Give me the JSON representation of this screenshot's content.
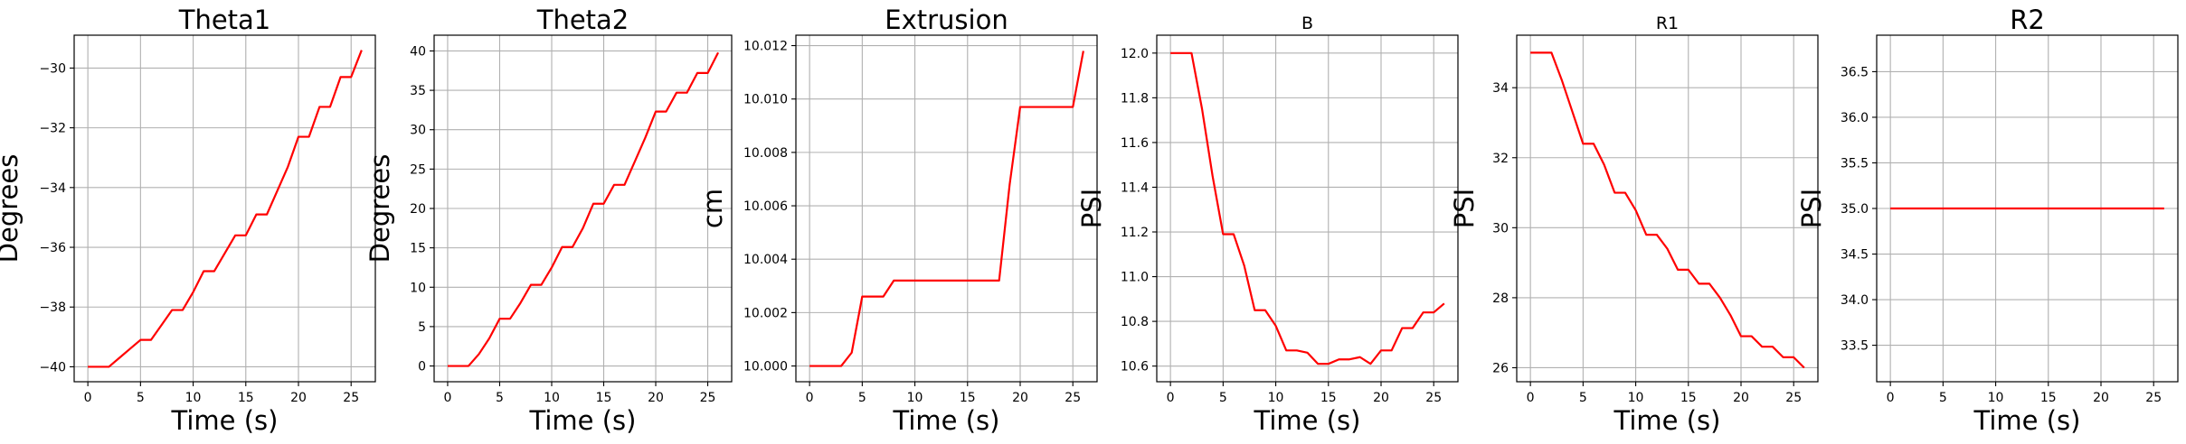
{
  "figure": {
    "background": "#ffffff",
    "line_color": "#ff0000",
    "grid_color": "#b0b0b0"
  },
  "chart_data": [
    {
      "type": "line",
      "title": "Theta1",
      "xlabel": "Time (s)",
      "ylabel": "Degrees",
      "xlim": [
        -1.3,
        27.3
      ],
      "ylim": [
        -40.5,
        -28.9
      ],
      "xticks": [
        0,
        5,
        10,
        15,
        20,
        25
      ],
      "xtick_labels": [
        "0",
        "5",
        "10",
        "15",
        "20",
        "25"
      ],
      "yticks": [
        -40,
        -38,
        -36,
        -34,
        -32,
        -30
      ],
      "ytick_labels": [
        "−40",
        "−38",
        "−36",
        "−34",
        "−32",
        "−30"
      ],
      "grid": true,
      "x": [
        0,
        1,
        2,
        3,
        4,
        5,
        6,
        7,
        8,
        9,
        10,
        11,
        12,
        13,
        14,
        15,
        16,
        17,
        18,
        19,
        20,
        21,
        22,
        23,
        24,
        25,
        26
      ],
      "y": [
        -40.0,
        -40.0,
        -40.0,
        -39.7,
        -39.4,
        -39.1,
        -39.1,
        -38.6,
        -38.1,
        -38.1,
        -37.5,
        -36.8,
        -36.8,
        -36.2,
        -35.6,
        -35.6,
        -34.9,
        -34.9,
        -34.1,
        -33.3,
        -32.3,
        -32.3,
        -31.3,
        -31.3,
        -30.3,
        -30.3,
        -29.4
      ]
    },
    {
      "type": "line",
      "title": "Theta2",
      "xlabel": "Time (s)",
      "ylabel": "Degrees",
      "xlim": [
        -1.3,
        27.3
      ],
      "ylim": [
        -2.0,
        42.0
      ],
      "xticks": [
        0,
        5,
        10,
        15,
        20,
        25
      ],
      "xtick_labels": [
        "0",
        "5",
        "10",
        "15",
        "20",
        "25"
      ],
      "yticks": [
        0,
        5,
        10,
        15,
        20,
        25,
        30,
        35,
        40
      ],
      "ytick_labels": [
        "0",
        "5",
        "10",
        "15",
        "20",
        "25",
        "30",
        "35",
        "40"
      ],
      "grid": true,
      "x": [
        0,
        1,
        2,
        3,
        4,
        5,
        6,
        7,
        8,
        9,
        10,
        11,
        12,
        13,
        14,
        15,
        16,
        17,
        18,
        19,
        20,
        21,
        22,
        23,
        24,
        25,
        26
      ],
      "y": [
        0,
        0,
        0,
        1.5,
        3.5,
        6.0,
        6.0,
        8.0,
        10.3,
        10.3,
        12.5,
        15.1,
        15.1,
        17.5,
        20.6,
        20.6,
        23.0,
        23.0,
        26.0,
        29.0,
        32.3,
        32.3,
        34.7,
        34.7,
        37.2,
        37.2,
        39.8
      ]
    },
    {
      "type": "line",
      "title": "Extrusion",
      "xlabel": "Time (s)",
      "ylabel": "cm",
      "xlim": [
        -1.3,
        27.3
      ],
      "ylim": [
        9.99941,
        10.01239
      ],
      "xticks": [
        0,
        5,
        10,
        15,
        20,
        25
      ],
      "xtick_labels": [
        "0",
        "5",
        "10",
        "15",
        "20",
        "25"
      ],
      "yticks": [
        10.0,
        10.002,
        10.004,
        10.006,
        10.008,
        10.01,
        10.012
      ],
      "ytick_labels": [
        "10.000",
        "10.002",
        "10.004",
        "10.006",
        "10.008",
        "10.010",
        "10.012"
      ],
      "grid": true,
      "x": [
        0,
        1,
        2,
        3,
        4,
        5,
        6,
        7,
        8,
        9,
        10,
        11,
        12,
        13,
        14,
        15,
        16,
        17,
        18,
        19,
        20,
        21,
        22,
        23,
        24,
        25,
        26
      ],
      "y": [
        10.0,
        10.0,
        10.0,
        10.0,
        10.0005,
        10.0026,
        10.0026,
        10.0026,
        10.0032,
        10.0032,
        10.0032,
        10.0032,
        10.0032,
        10.0032,
        10.0032,
        10.0032,
        10.0032,
        10.0032,
        10.0032,
        10.0068,
        10.0097,
        10.0097,
        10.0097,
        10.0097,
        10.0097,
        10.0097,
        10.0118
      ]
    },
    {
      "type": "line",
      "title": "B",
      "xlabel": "Time (s)",
      "ylabel": "PSI",
      "xlim": [
        -1.3,
        27.3
      ],
      "ylim": [
        10.53,
        12.08
      ],
      "xticks": [
        0,
        5,
        10,
        15,
        20,
        25
      ],
      "xtick_labels": [
        "0",
        "5",
        "10",
        "15",
        "20",
        "25"
      ],
      "yticks": [
        10.6,
        10.8,
        11.0,
        11.2,
        11.4,
        11.6,
        11.8,
        12.0
      ],
      "ytick_labels": [
        "10.6",
        "10.8",
        "11.0",
        "11.2",
        "11.4",
        "11.6",
        "11.8",
        "12.0"
      ],
      "grid": true,
      "x": [
        0,
        1,
        2,
        3,
        4,
        5,
        6,
        7,
        8,
        9,
        10,
        11,
        12,
        13,
        14,
        15,
        16,
        17,
        18,
        19,
        20,
        21,
        22,
        23,
        24,
        25,
        26
      ],
      "y": [
        12.0,
        12.0,
        12.0,
        11.75,
        11.45,
        11.19,
        11.19,
        11.05,
        10.85,
        10.85,
        10.78,
        10.67,
        10.67,
        10.66,
        10.61,
        10.61,
        10.63,
        10.63,
        10.64,
        10.61,
        10.67,
        10.67,
        10.77,
        10.77,
        10.84,
        10.84,
        10.88
      ]
    },
    {
      "type": "line",
      "title": "R1",
      "xlabel": "Time (s)",
      "ylabel": "PSI",
      "xlim": [
        -1.3,
        27.3
      ],
      "ylim": [
        25.6,
        35.5
      ],
      "xticks": [
        0,
        5,
        10,
        15,
        20,
        25
      ],
      "xtick_labels": [
        "0",
        "5",
        "10",
        "15",
        "20",
        "25"
      ],
      "yticks": [
        26,
        28,
        30,
        32,
        34
      ],
      "ytick_labels": [
        "26",
        "28",
        "30",
        "32",
        "34"
      ],
      "grid": true,
      "x": [
        0,
        1,
        2,
        3,
        4,
        5,
        6,
        7,
        8,
        9,
        10,
        11,
        12,
        13,
        14,
        15,
        16,
        17,
        18,
        19,
        20,
        21,
        22,
        23,
        24,
        25,
        26
      ],
      "y": [
        35.0,
        35.0,
        35.0,
        34.2,
        33.3,
        32.4,
        32.4,
        31.8,
        31.0,
        31.0,
        30.5,
        29.8,
        29.8,
        29.4,
        28.8,
        28.8,
        28.4,
        28.4,
        28.0,
        27.5,
        26.9,
        26.9,
        26.6,
        26.6,
        26.3,
        26.3,
        26.0
      ]
    },
    {
      "type": "line",
      "title": "R2",
      "xlabel": "Time (s)",
      "ylabel": "PSI",
      "xlim": [
        -1.3,
        27.3
      ],
      "ylim": [
        33.1,
        36.9
      ],
      "xticks": [
        0,
        5,
        10,
        15,
        20,
        25
      ],
      "xtick_labels": [
        "0",
        "5",
        "10",
        "15",
        "20",
        "25"
      ],
      "yticks": [
        33.5,
        34.0,
        34.5,
        35.0,
        35.5,
        36.0,
        36.5
      ],
      "ytick_labels": [
        "33.5",
        "34.0",
        "34.5",
        "35.0",
        "35.5",
        "36.0",
        "36.5"
      ],
      "grid": true,
      "x": [
        0,
        26
      ],
      "y": [
        35.0,
        35.0
      ]
    }
  ]
}
